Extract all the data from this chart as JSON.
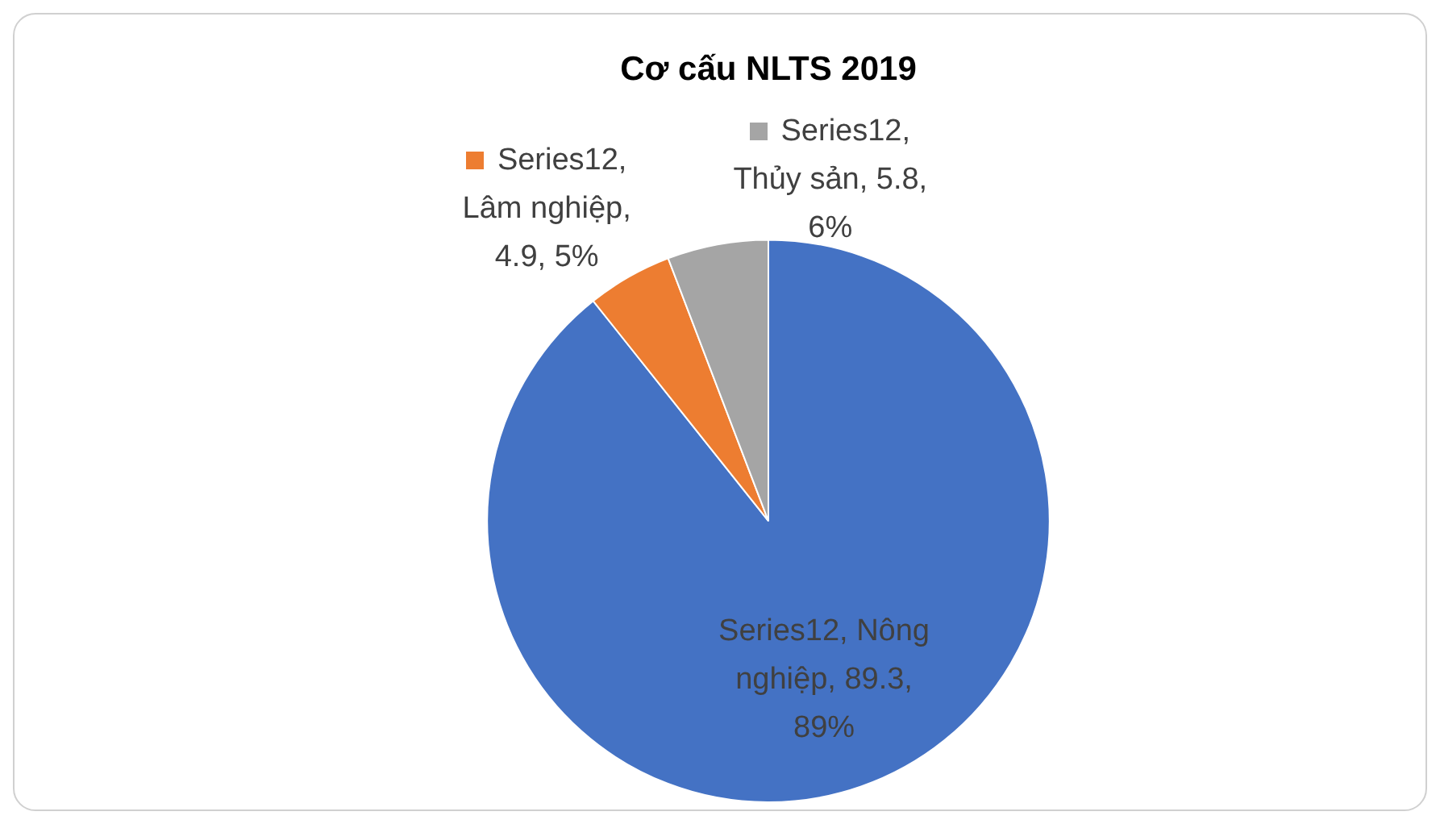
{
  "chart_data": {
    "type": "pie",
    "title": "Cơ cấu NLTS 2019",
    "categories": [
      null,
      null,
      null
    ],
    "values": [
      89.3,
      4.9,
      5.8
    ],
    "colors": [
      "#4472c4",
      "#ed7d31",
      "#a5a5a5"
    ],
    "value_labels": [
      "Series12, Nông nghiệp, 89.3, 89%",
      "Series12, Lâm nghiệp, 4.9, 5%",
      "Series12, Thủy sản, 5.8, 6%"
    ]
  }
}
